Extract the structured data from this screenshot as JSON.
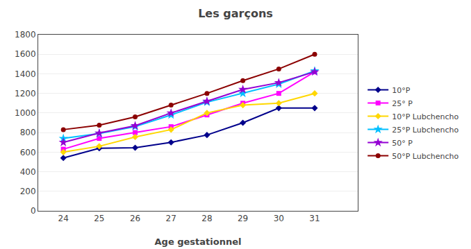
{
  "chart_data": {
    "type": "line",
    "title": "Les garçons",
    "xlabel": "Age gestationnel",
    "x": [
      24,
      25,
      26,
      27,
      28,
      29,
      30,
      31
    ],
    "series": [
      {
        "name": "10°P",
        "color": "#00008B",
        "marker": "diamond",
        "values": [
          540,
          640,
          645,
          700,
          775,
          900,
          1050,
          1050
        ]
      },
      {
        "name": "25° P",
        "color": "#FF00FF",
        "marker": "square",
        "values": [
          630,
          740,
          800,
          860,
          980,
          1100,
          1200,
          1420
        ]
      },
      {
        "name": "10°P Lubchencho",
        "color": "#FFD700",
        "marker": "diamond",
        "values": [
          600,
          660,
          755,
          830,
          1000,
          1080,
          1100,
          1200
        ]
      },
      {
        "name": "25°P Lubchencho",
        "color": "#00BFFF",
        "marker": "star",
        "values": [
          740,
          790,
          860,
          980,
          1110,
          1200,
          1295,
          1430
        ]
      },
      {
        "name": "50° P",
        "color": "#9400D3",
        "marker": "star",
        "values": [
          700,
          795,
          870,
          1000,
          1120,
          1240,
          1310,
          1420
        ]
      },
      {
        "name": "50°P Lubchencho",
        "color": "#8B0000",
        "marker": "circle",
        "values": [
          830,
          875,
          960,
          1080,
          1200,
          1330,
          1450,
          1600
        ]
      }
    ],
    "xlim": [
      23.3,
      32.2
    ],
    "xticks": [
      24,
      25,
      26,
      27,
      28,
      29,
      30,
      31
    ],
    "ylim": [
      0,
      1800
    ],
    "yticks": [
      0,
      200,
      400,
      600,
      800,
      1000,
      1200,
      1400,
      1600,
      1800
    ],
    "grid": true,
    "legend": "right"
  }
}
